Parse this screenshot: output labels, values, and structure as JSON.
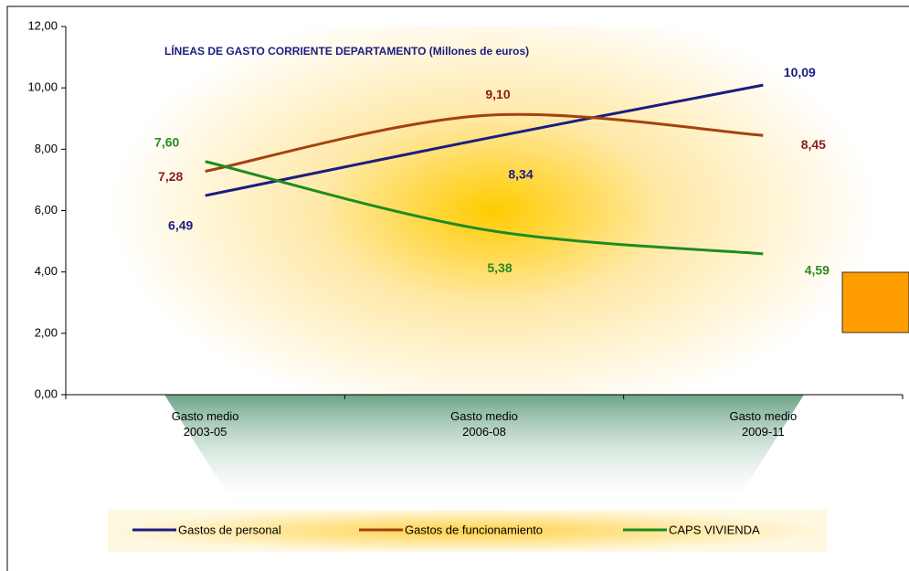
{
  "chart_data": {
    "type": "line",
    "title": "LÍNEAS DE GASTO CORRIENTE  DEPARTAMENTO (Millones de euros)",
    "categories": [
      "Gasto medio\n2003-05",
      "Gasto medio\n2006-08",
      "Gasto medio\n2009-11"
    ],
    "series": [
      {
        "name": "Gastos de personal",
        "color": "#1c1c80",
        "label_color": "#1c1c80",
        "values": [
          6.49,
          8.34,
          10.09
        ],
        "value_labels": [
          "6,49",
          "8,34",
          "10,09"
        ]
      },
      {
        "name": "Gastos de funcionamiento",
        "color": "#a5420e",
        "label_color": "#8b1c1c",
        "values": [
          7.28,
          9.1,
          8.45
        ],
        "value_labels": [
          "7,28",
          "9,10",
          "8,45"
        ]
      },
      {
        "name": "CAPS VIVIENDA",
        "color": "#1e8c1e",
        "label_color": "#2a8a1a",
        "values": [
          7.6,
          5.38,
          4.59
        ],
        "value_labels": [
          "7,60",
          "5,38",
          "4,59"
        ]
      }
    ],
    "ylim": [
      0,
      12
    ],
    "yticks": [
      {
        "value": 0,
        "label": "0,00"
      },
      {
        "value": 2,
        "label": "2,00"
      },
      {
        "value": 4,
        "label": "4,00"
      },
      {
        "value": 6,
        "label": "6,00"
      },
      {
        "value": 8,
        "label": "8,00"
      },
      {
        "value": 10,
        "label": "10,00"
      },
      {
        "value": 12,
        "label": "12,00"
      }
    ],
    "smooth": true,
    "legend": "bottom"
  }
}
